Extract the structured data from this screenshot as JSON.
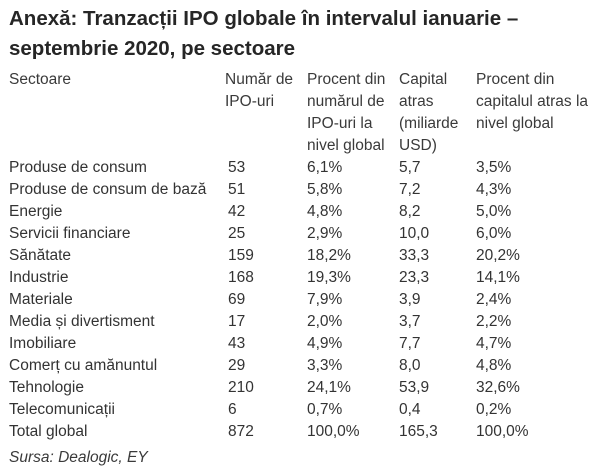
{
  "title": "Anexă: Tranzacții IPO globale în intervalul ianuarie – septembrie 2020, pe sectoare",
  "headers": {
    "sector": "Sectoare",
    "ipo_count": "Număr de IPO-uri",
    "ipo_percent": "Procent din numărul de IPO-uri la nivel global",
    "capital": "Capital atras (miliarde USD)",
    "capital_percent": "Procent din capitalul atras la nivel global"
  },
  "rows": [
    {
      "sector": "Produse de consum",
      "ipo_count": "53",
      "ipo_percent": "6,1%",
      "capital": "5,7",
      "capital_percent": "3,5%"
    },
    {
      "sector": "Produse de consum de bază",
      "ipo_count": "51",
      "ipo_percent": "5,8%",
      "capital": "7,2",
      "capital_percent": "4,3%"
    },
    {
      "sector": "Energie",
      "ipo_count": "42",
      "ipo_percent": "4,8%",
      "capital": "8,2",
      "capital_percent": "5,0%"
    },
    {
      "sector": "Servicii financiare",
      "ipo_count": "25",
      "ipo_percent": "2,9%",
      "capital": "10,0",
      "capital_percent": "6,0%"
    },
    {
      "sector": "Sănătate",
      "ipo_count": "159",
      "ipo_percent": "18,2%",
      "capital": "33,3",
      "capital_percent": "20,2%"
    },
    {
      "sector": "Industrie",
      "ipo_count": "168",
      "ipo_percent": "19,3%",
      "capital": "23,3",
      "capital_percent": "14,1%"
    },
    {
      "sector": "Materiale",
      "ipo_count": "69",
      "ipo_percent": "7,9%",
      "capital": "3,9",
      "capital_percent": "2,4%"
    },
    {
      "sector": "Media și divertisment",
      "ipo_count": "17",
      "ipo_percent": "2,0%",
      "capital": "3,7",
      "capital_percent": "2,2%"
    },
    {
      "sector": "Imobiliare",
      "ipo_count": "43",
      "ipo_percent": "4,9%",
      "capital": "7,7",
      "capital_percent": "4,7%"
    },
    {
      "sector": "Comerț cu amănuntul",
      "ipo_count": "29",
      "ipo_percent": "3,3%",
      "capital": "8,0",
      "capital_percent": "4,8%"
    },
    {
      "sector": "Tehnologie",
      "ipo_count": "210",
      "ipo_percent": "24,1%",
      "capital": "53,9",
      "capital_percent": "32,6%"
    },
    {
      "sector": "Telecomunicații",
      "ipo_count": "6",
      "ipo_percent": "0,7%",
      "capital": "0,4",
      "capital_percent": "0,2%"
    },
    {
      "sector": "Total global",
      "ipo_count": "872",
      "ipo_percent": "100,0%",
      "capital": "165,3",
      "capital_percent": "100,0%"
    }
  ],
  "source": "Sursa: Dealogic, EY"
}
